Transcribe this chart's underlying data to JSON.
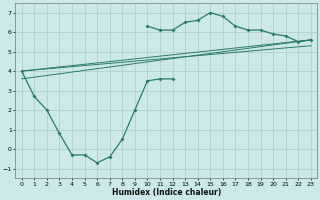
{
  "xlabel": "Humidex (Indice chaleur)",
  "bg_color": "#cce8e8",
  "grid_color": "#aacccc",
  "line_color": "#2a7a6a",
  "xlim": [
    -0.5,
    23.5
  ],
  "ylim": [
    -1.5,
    7.5
  ],
  "xticks": [
    0,
    1,
    2,
    3,
    4,
    5,
    6,
    7,
    8,
    9,
    10,
    11,
    12,
    13,
    14,
    15,
    16,
    17,
    18,
    19,
    20,
    21,
    22,
    23
  ],
  "yticks": [
    -1,
    0,
    1,
    2,
    3,
    4,
    5,
    6,
    7
  ],
  "series1_x": [
    0,
    1,
    2,
    3,
    4,
    5,
    6,
    7,
    8,
    9,
    10,
    11,
    12
  ],
  "series1_y": [
    4.0,
    2.7,
    2.0,
    0.8,
    -0.3,
    -0.3,
    -0.7,
    -0.4,
    0.5,
    2.0,
    3.5,
    3.6,
    3.6
  ],
  "series2_x": [
    10,
    11,
    12,
    13,
    14,
    15,
    16,
    17,
    18,
    19,
    20,
    21,
    22,
    23
  ],
  "series2_y": [
    6.3,
    6.1,
    6.1,
    6.5,
    6.6,
    7.0,
    6.8,
    6.3,
    6.1,
    6.1,
    5.9,
    5.8,
    5.5,
    5.6
  ],
  "lines": [
    {
      "x": [
        0,
        23
      ],
      "y": [
        4.0,
        5.6
      ]
    },
    {
      "x": [
        0,
        23
      ],
      "y": [
        4.0,
        5.3
      ]
    },
    {
      "x": [
        0,
        23
      ],
      "y": [
        3.6,
        5.6
      ]
    }
  ]
}
